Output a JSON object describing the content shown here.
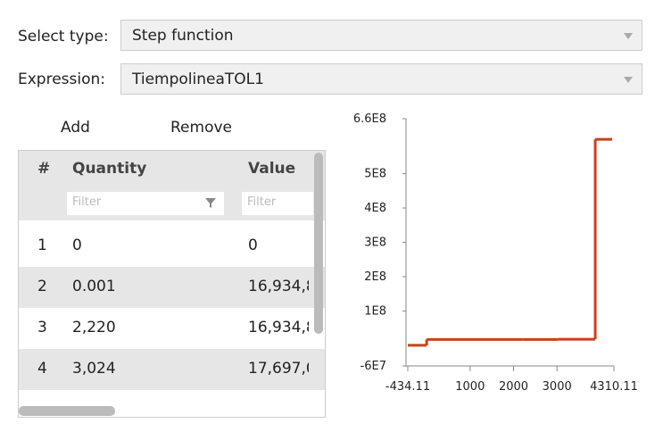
{
  "form": {
    "type_label": "Select type:",
    "type_value": "Step function",
    "expression_label": "Expression:",
    "expression_value": "TiempolineaTOL1"
  },
  "buttons": {
    "add": "Add",
    "remove": "Remove"
  },
  "table": {
    "headers": [
      "#",
      "Quantity",
      "Value"
    ],
    "filter_placeholder": "Filter",
    "rows": [
      [
        "1",
        "0",
        "0"
      ],
      [
        "2",
        "0.001",
        "16,934,8"
      ],
      [
        "3",
        "2,220",
        "16,934,8"
      ],
      [
        "4",
        "3,024",
        "17,697,0"
      ]
    ]
  },
  "chart": {
    "type": "step",
    "color": "#cc3f1c",
    "x": [
      -434.11,
      0.001,
      2220,
      3024,
      3880,
      4270
    ],
    "values": [
      0,
      16934800,
      16934800,
      17697000,
      600000000,
      600000000
    ],
    "xlim": [
      -434.11,
      4310.11
    ],
    "xticks": [
      -434.11,
      1000,
      2000,
      3000,
      4310.11
    ],
    "ylim": [
      -60000000,
      660000000
    ],
    "yticks": [
      {
        "value": -60000000,
        "label": "-6E7"
      },
      {
        "value": 100000000,
        "label": "1E8"
      },
      {
        "value": 200000000,
        "label": "2E8"
      },
      {
        "value": 300000000,
        "label": "3E8"
      },
      {
        "value": 400000000,
        "label": "4E8"
      },
      {
        "value": 500000000,
        "label": "5E8"
      },
      {
        "value": 660000000,
        "label": "6.6E8"
      }
    ]
  }
}
